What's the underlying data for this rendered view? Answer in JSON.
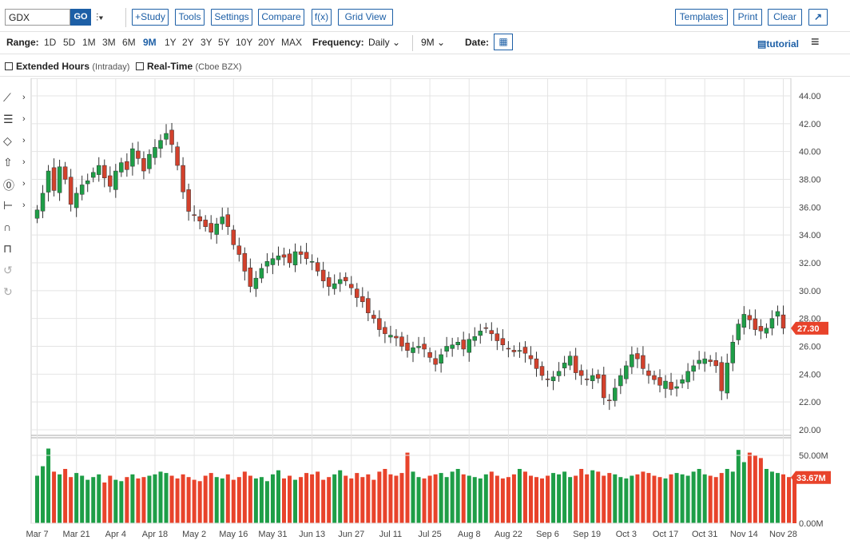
{
  "toolbar": {
    "symbol_value": "GDX",
    "go_label": "GO",
    "chart_type_icon": "candlestick-icon",
    "study_label": "+Study",
    "tools_label": "Tools",
    "settings_label": "Settings",
    "compare_label": "Compare",
    "fx_label": "f(x)",
    "gridview_label": "Grid View",
    "templates_label": "Templates",
    "print_label": "Print",
    "clear_label": "Clear",
    "expand_icon": "expand-icon"
  },
  "range_bar": {
    "range_label": "Range:",
    "ranges": [
      "1D",
      "5D",
      "1M",
      "3M",
      "6M",
      "9M",
      "1Y",
      "2Y",
      "3Y",
      "5Y",
      "10Y",
      "20Y",
      "MAX"
    ],
    "active_range": "9M",
    "frequency_label": "Frequency:",
    "frequency_value": "Daily",
    "period_value": "9M",
    "date_label": "Date:",
    "tutorial_label": "tutorial"
  },
  "options": {
    "extended_hours_label": "Extended Hours",
    "extended_hours_sub": "(Intraday)",
    "realtime_label": "Real-Time",
    "realtime_sub": "(Cboe BZX)"
  },
  "chart_data": {
    "type": "candlestick",
    "symbol": "GDX",
    "y_ticks": [
      "44.00",
      "42.00",
      "40.00",
      "38.00",
      "36.00",
      "34.00",
      "32.00",
      "30.00",
      "28.00",
      "26.00",
      "24.00",
      "22.00",
      "20.00"
    ],
    "ylim": [
      20,
      44
    ],
    "x_labels": [
      "Mar 7",
      "Mar 21",
      "Apr 4",
      "Apr 18",
      "May 2",
      "May 16",
      "May 31",
      "Jun 13",
      "Jun 27",
      "Jul 11",
      "Jul 25",
      "Aug 8",
      "Aug 22",
      "Sep 6",
      "Sep 19",
      "Oct 3",
      "Oct 17",
      "Oct 31",
      "Nov 14",
      "Nov 28"
    ],
    "last_price_label": "27.30",
    "last_price": 27.3,
    "close_series": [
      35.8,
      37.0,
      38.6,
      37.2,
      38.9,
      38.0,
      36.2,
      37.0,
      37.6,
      37.9,
      38.5,
      39.0,
      38.1,
      37.5,
      38.6,
      39.2,
      38.7,
      40.2,
      39.5,
      38.6,
      39.8,
      40.3,
      40.8,
      41.3,
      40.5,
      39.0,
      37.1,
      35.7,
      35.4,
      35.0,
      34.6,
      34.2,
      34.8,
      35.3,
      34.6,
      33.3,
      32.6,
      31.4,
      30.3,
      30.9,
      31.6,
      32.1,
      32.3,
      32.5,
      32.4,
      32.0,
      32.8,
      32.6,
      32.3,
      32.1,
      31.4,
      30.7,
      30.3,
      30.5,
      30.8,
      30.7,
      30.2,
      29.5,
      29.2,
      28.4,
      28.0,
      27.2,
      26.9,
      26.8,
      26.6,
      26.0,
      25.7,
      25.9,
      26.0,
      25.8,
      25.2,
      24.7,
      25.4,
      26.0,
      26.1,
      26.3,
      25.8,
      26.5,
      26.7,
      27.1,
      27.3,
      26.9,
      26.4,
      26.1,
      25.8,
      25.6,
      25.7,
      25.5,
      25.1,
      24.4,
      23.9,
      23.6,
      23.8,
      24.2,
      24.8,
      25.3,
      24.1,
      23.9,
      23.6,
      23.9,
      23.7,
      22.3,
      22.1,
      23.0,
      23.9,
      24.6,
      25.4,
      25.1,
      24.4,
      23.9,
      23.6,
      23.2,
      23.5,
      22.9,
      23.1,
      23.6,
      24.2,
      24.6,
      25.0,
      25.1,
      24.9,
      24.6,
      22.8,
      24.8,
      26.3,
      27.6,
      28.3,
      27.9,
      27.2,
      27.1,
      27.3,
      28.0,
      28.5,
      27.3
    ],
    "volume_ticks": [
      "50.00M",
      "0.00M"
    ],
    "volume_max": 60,
    "last_volume_label": "33.67M",
    "volume_series": [
      35,
      42,
      55,
      38,
      36,
      40,
      34,
      37,
      35,
      32,
      34,
      36,
      30,
      35,
      32,
      31,
      34,
      36,
      33,
      34,
      35,
      36,
      38,
      37,
      35,
      33,
      36,
      34,
      32,
      31,
      35,
      37,
      34,
      33,
      36,
      32,
      34,
      38,
      35,
      33,
      34,
      31,
      36,
      39,
      33,
      35,
      32,
      34,
      37,
      36,
      38,
      32,
      34,
      36,
      39,
      35,
      33,
      37,
      34,
      36,
      32,
      38,
      40,
      36,
      35,
      37,
      52,
      38,
      34,
      33,
      35,
      36,
      37,
      34,
      38,
      40,
      36,
      35,
      34,
      33,
      36,
      38,
      35,
      33,
      34,
      36,
      40,
      38,
      35,
      34,
      33,
      35,
      37,
      36,
      38,
      34,
      35,
      40,
      36,
      39,
      38,
      35,
      37,
      36,
      34,
      33,
      35,
      36,
      38,
      37,
      35,
      34,
      33,
      36,
      37,
      36,
      35,
      38,
      40,
      36,
      35,
      34,
      37,
      40,
      38,
      54,
      45,
      52,
      50,
      48,
      40,
      38,
      37,
      36,
      34,
      33.67
    ]
  }
}
